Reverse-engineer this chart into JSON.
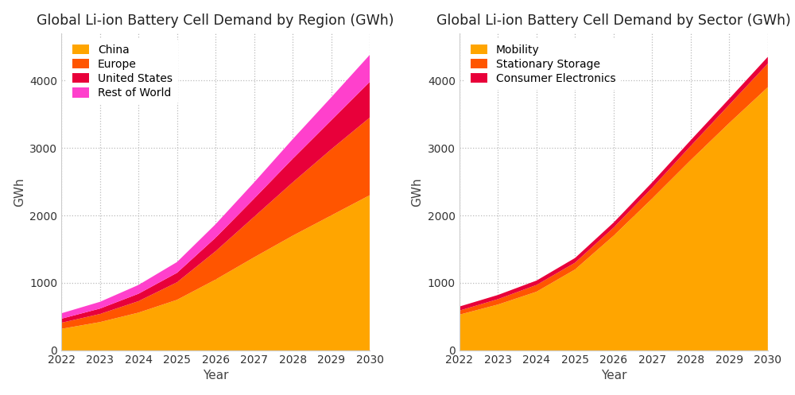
{
  "years": [
    2022,
    2023,
    2024,
    2025,
    2026,
    2027,
    2028,
    2029,
    2030
  ],
  "region_title": "Global Li-ion Battery Cell Demand by Region (GWh)",
  "region_labels": [
    "China",
    "Europe",
    "United States",
    "Rest of World"
  ],
  "region_colors": [
    "#FFA500",
    "#FF5500",
    "#E8003A",
    "#FF40CC"
  ],
  "region_data": {
    "China": [
      320,
      420,
      560,
      750,
      1050,
      1380,
      1700,
      2000,
      2300
    ],
    "Europe": [
      90,
      120,
      170,
      260,
      420,
      600,
      790,
      980,
      1150
    ],
    "United States": [
      60,
      80,
      110,
      140,
      200,
      270,
      350,
      430,
      530
    ],
    "Rest of World": [
      80,
      100,
      130,
      160,
      200,
      240,
      290,
      340,
      400
    ]
  },
  "sector_title": "Global Li-ion Battery Cell Demand by Sector (GWh)",
  "sector_labels": [
    "Mobility",
    "Stationary Storage",
    "Consumer Electronics"
  ],
  "sector_colors": [
    "#FFA500",
    "#FF5500",
    "#E8003A"
  ],
  "sector_data": {
    "Mobility": [
      530,
      680,
      870,
      1200,
      1700,
      2250,
      2820,
      3370,
      3900
    ],
    "Stationary Storage": [
      60,
      80,
      100,
      100,
      120,
      160,
      210,
      270,
      350
    ],
    "Consumer Electronics": [
      60,
      62,
      65,
      70,
      75,
      80,
      85,
      90,
      100
    ]
  },
  "xlabel": "Year",
  "ylabel": "GWh",
  "ylim": [
    0,
    4700
  ],
  "background_color": "#ffffff",
  "grid_color": "#bbbbbb",
  "title_fontsize": 12.5,
  "label_fontsize": 11,
  "tick_fontsize": 10
}
